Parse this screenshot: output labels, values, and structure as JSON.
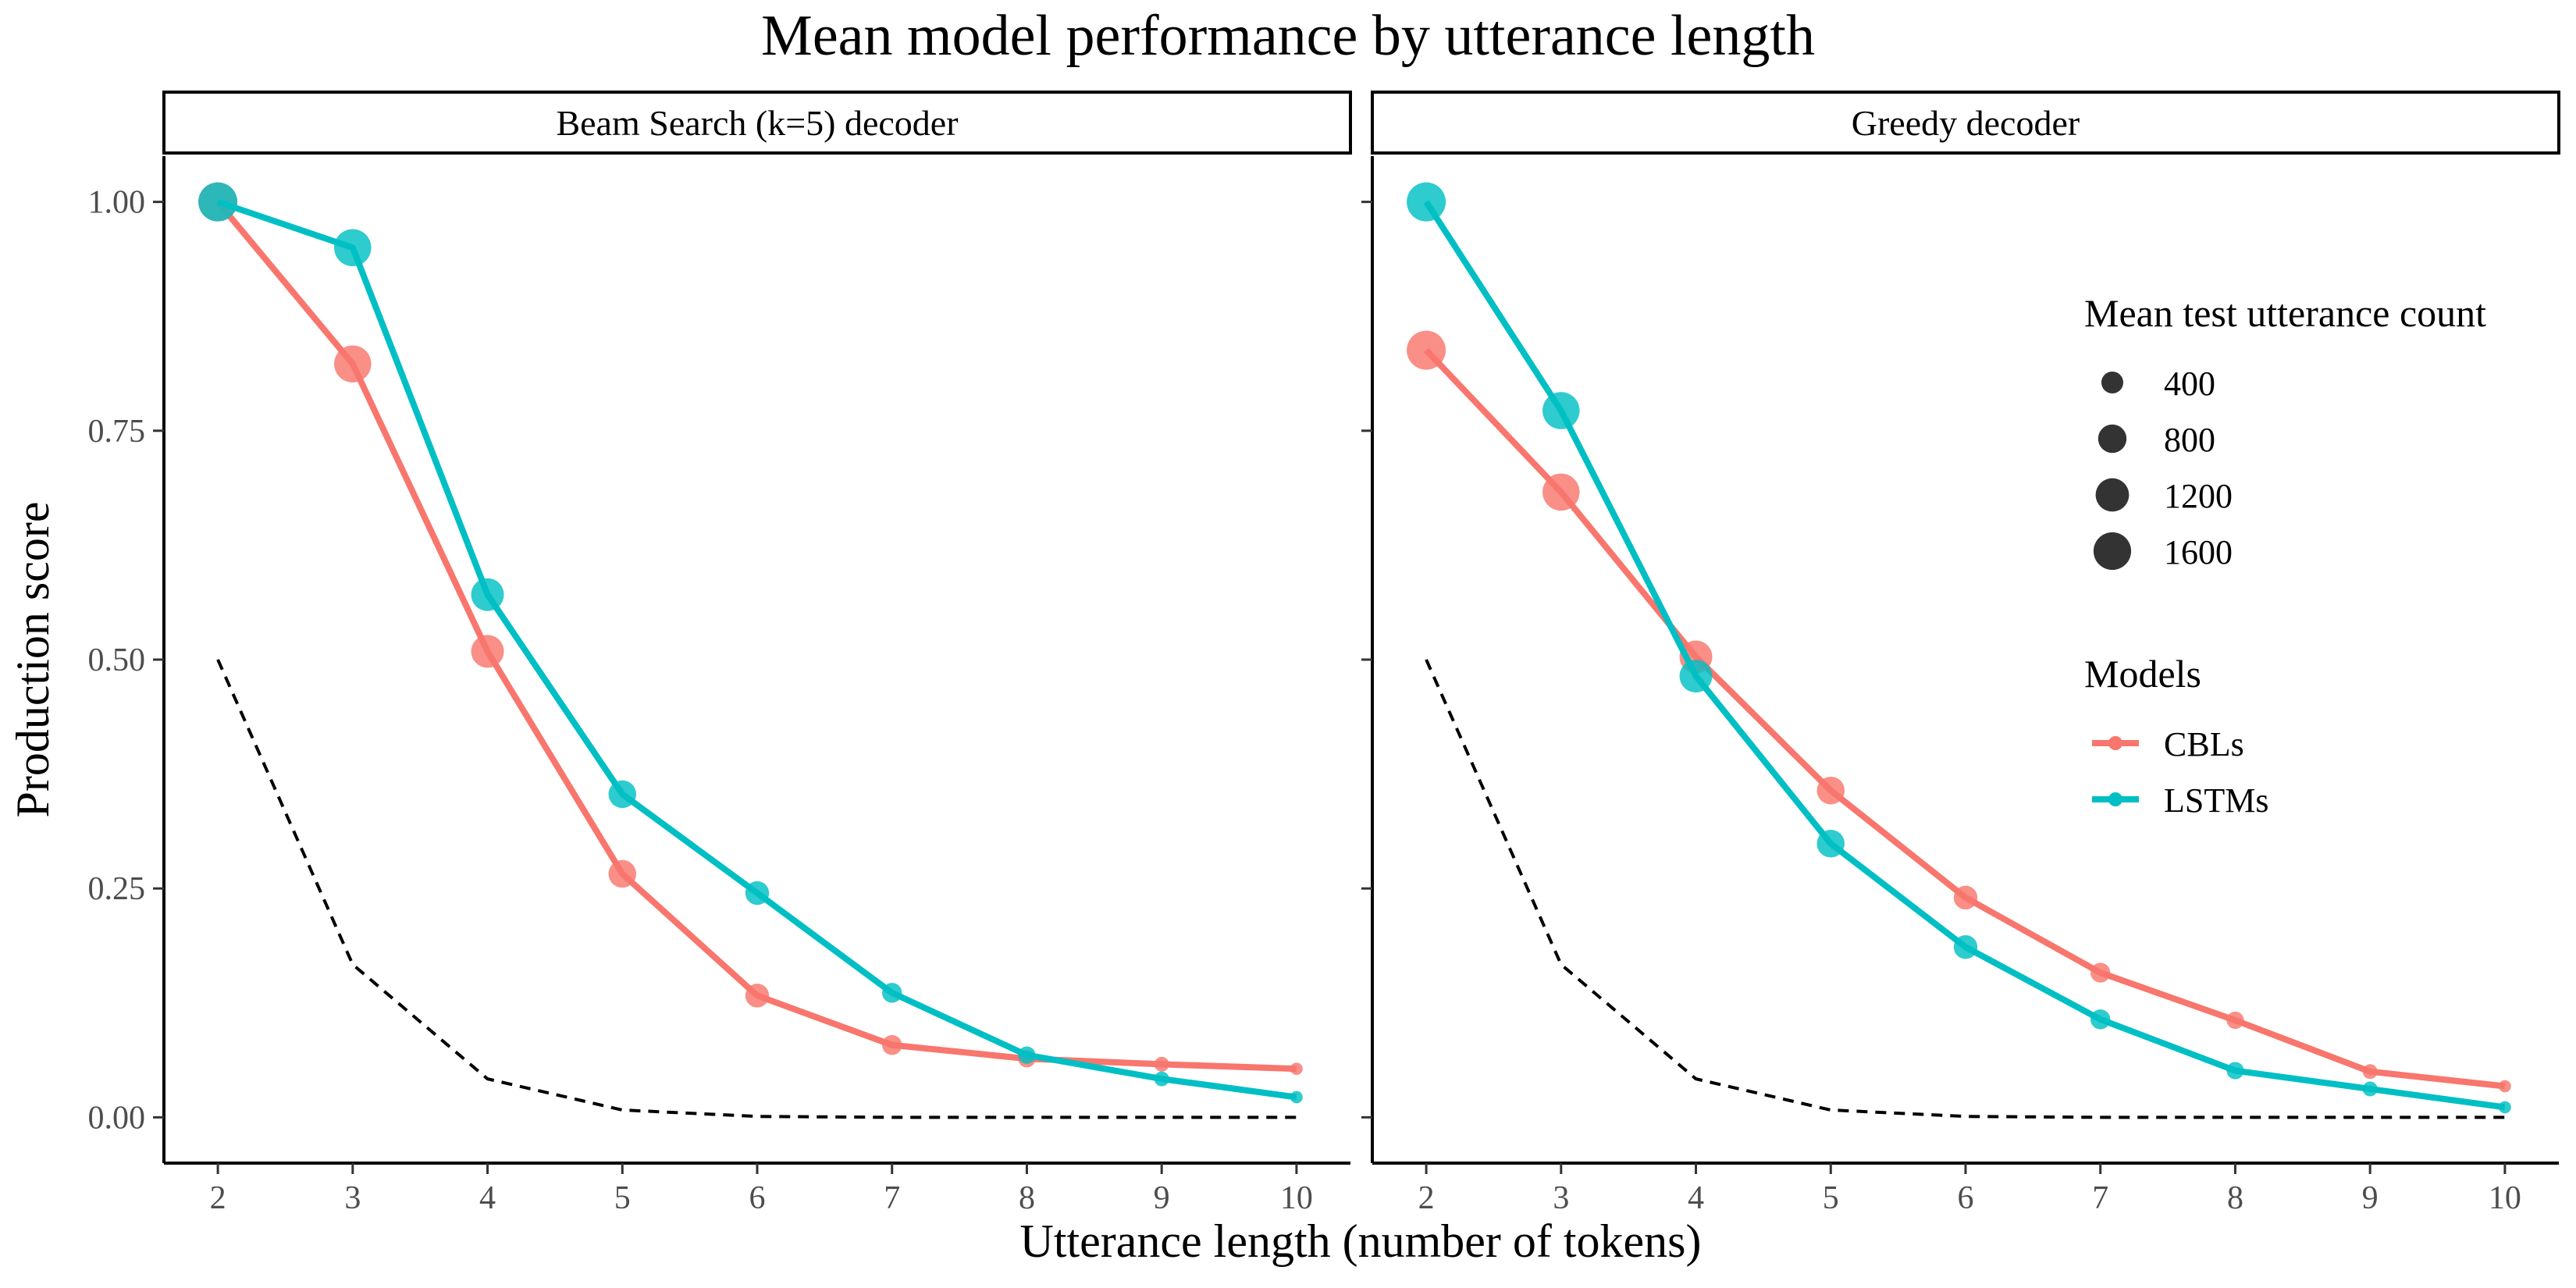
{
  "chart_data": {
    "type": "line",
    "title": "Mean model performance by utterance length",
    "xlabel": "Utterance length (number of tokens)",
    "ylabel": "Production score",
    "x_ticks": [
      2,
      3,
      4,
      5,
      6,
      7,
      8,
      9,
      10
    ],
    "y_ticks": [
      "0.00",
      "0.25",
      "0.50",
      "0.75",
      "1.00"
    ],
    "xlim": [
      1.6,
      10.4
    ],
    "ylim": [
      -0.05,
      1.05
    ],
    "grid": false,
    "legend_position": "right",
    "colors": {
      "CBLs": "#F8766D",
      "LSTMs": "#00BFC4",
      "baseline": "#000000"
    },
    "size_legend": {
      "title": "Mean test utterance count",
      "values": [
        400,
        800,
        1200,
        1600
      ]
    },
    "color_legend": {
      "title": "Models",
      "entries": [
        "CBLs",
        "LSTMs"
      ]
    },
    "baseline": {
      "style": "dashed",
      "x": [
        2,
        3,
        4,
        5,
        6,
        7,
        8,
        9,
        10
      ],
      "y": [
        0.5,
        0.167,
        0.042,
        0.008,
        0.001,
        0.0,
        0.0,
        0.0,
        0.0
      ]
    },
    "count": {
      "x": [
        2,
        3,
        4,
        5,
        6,
        7,
        8,
        9,
        10
      ],
      "values": [
        1750,
        1550,
        1150,
        750,
        500,
        300,
        200,
        120,
        60
      ]
    },
    "panels": [
      {
        "label": "Beam Search (k=5) decoder",
        "series": [
          {
            "name": "CBLs",
            "x": [
              2,
              3,
              4,
              5,
              6,
              7,
              8,
              9,
              10
            ],
            "y": [
              1.0,
              0.823,
              0.509,
              0.266,
              0.133,
              0.079,
              0.064,
              0.058,
              0.053
            ]
          },
          {
            "name": "LSTMs",
            "x": [
              2,
              3,
              4,
              5,
              6,
              7,
              8,
              9,
              10
            ],
            "y": [
              1.0,
              0.95,
              0.571,
              0.353,
              0.245,
              0.136,
              0.068,
              0.042,
              0.022
            ]
          }
        ]
      },
      {
        "label": "Greedy decoder",
        "series": [
          {
            "name": "CBLs",
            "x": [
              2,
              3,
              4,
              5,
              6,
              7,
              8,
              9,
              10
            ],
            "y": [
              0.838,
              0.683,
              0.503,
              0.357,
              0.24,
              0.158,
              0.106,
              0.05,
              0.034
            ]
          },
          {
            "name": "LSTMs",
            "x": [
              2,
              3,
              4,
              5,
              6,
              7,
              8,
              9,
              10
            ],
            "y": [
              1.0,
              0.772,
              0.482,
              0.299,
              0.186,
              0.107,
              0.051,
              0.031,
              0.011
            ]
          }
        ]
      }
    ]
  }
}
